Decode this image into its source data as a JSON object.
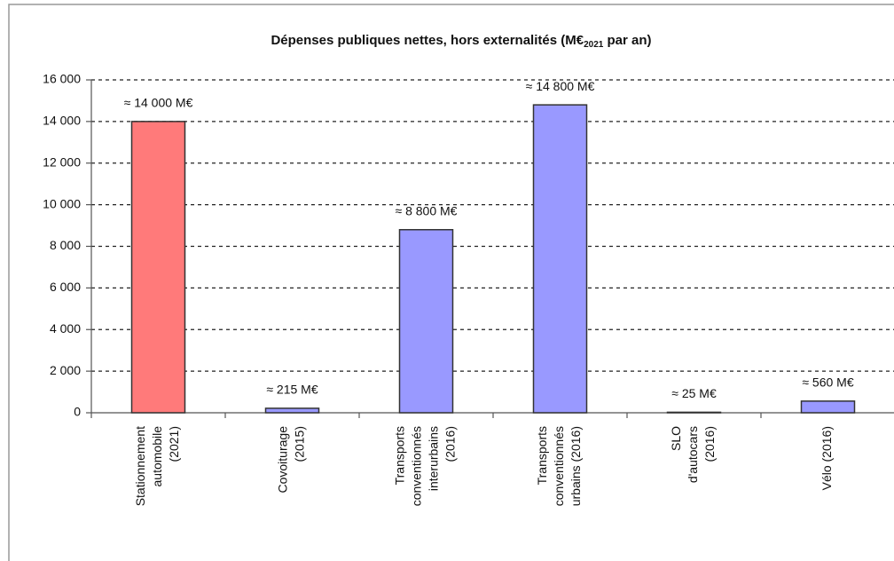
{
  "chart_data": {
    "type": "bar",
    "title_parts": [
      "Dépenses publiques nettes, hors externalités (M€",
      "2021",
      " par an)"
    ],
    "categories": [
      [
        "Stationnement",
        "automobile",
        "(2021)"
      ],
      [
        "Covoiturage",
        "(2015)"
      ],
      [
        "Transports",
        "conventionnés",
        "interurbains",
        "(2016)"
      ],
      [
        "Transports",
        "conventionnés",
        "urbains (2016)"
      ],
      [
        "SLO",
        "d'autocars",
        "(2016)"
      ],
      [
        "Vélo (2016)"
      ]
    ],
    "values": [
      14000,
      215,
      8800,
      14800,
      25,
      560
    ],
    "value_labels": [
      "≈ 14 000 M€",
      "≈ 215 M€",
      "≈ 8 800 M€",
      "≈ 14 800 M€",
      "≈ 25 M€",
      "≈ 560 M€"
    ],
    "colors": [
      "#ff7a7a",
      "#9999ff",
      "#9999ff",
      "#9999ff",
      "#9999ff",
      "#9999ff"
    ],
    "ylim": [
      0,
      16000
    ],
    "yticks": [
      0,
      {
        "value": 2000,
        "label": "2 000"
      },
      {
        "value": 4000,
        "label": "4 000"
      },
      {
        "value": 6000,
        "label": "6 000"
      },
      {
        "value": 8000,
        "label": "8 000"
      },
      {
        "value": 10000,
        "label": "10 000"
      },
      {
        "value": 12000,
        "label": "12 000"
      },
      {
        "value": 14000,
        "label": "14 000"
      },
      {
        "value": 16000,
        "label": "16 000"
      }
    ],
    "grid": true
  }
}
